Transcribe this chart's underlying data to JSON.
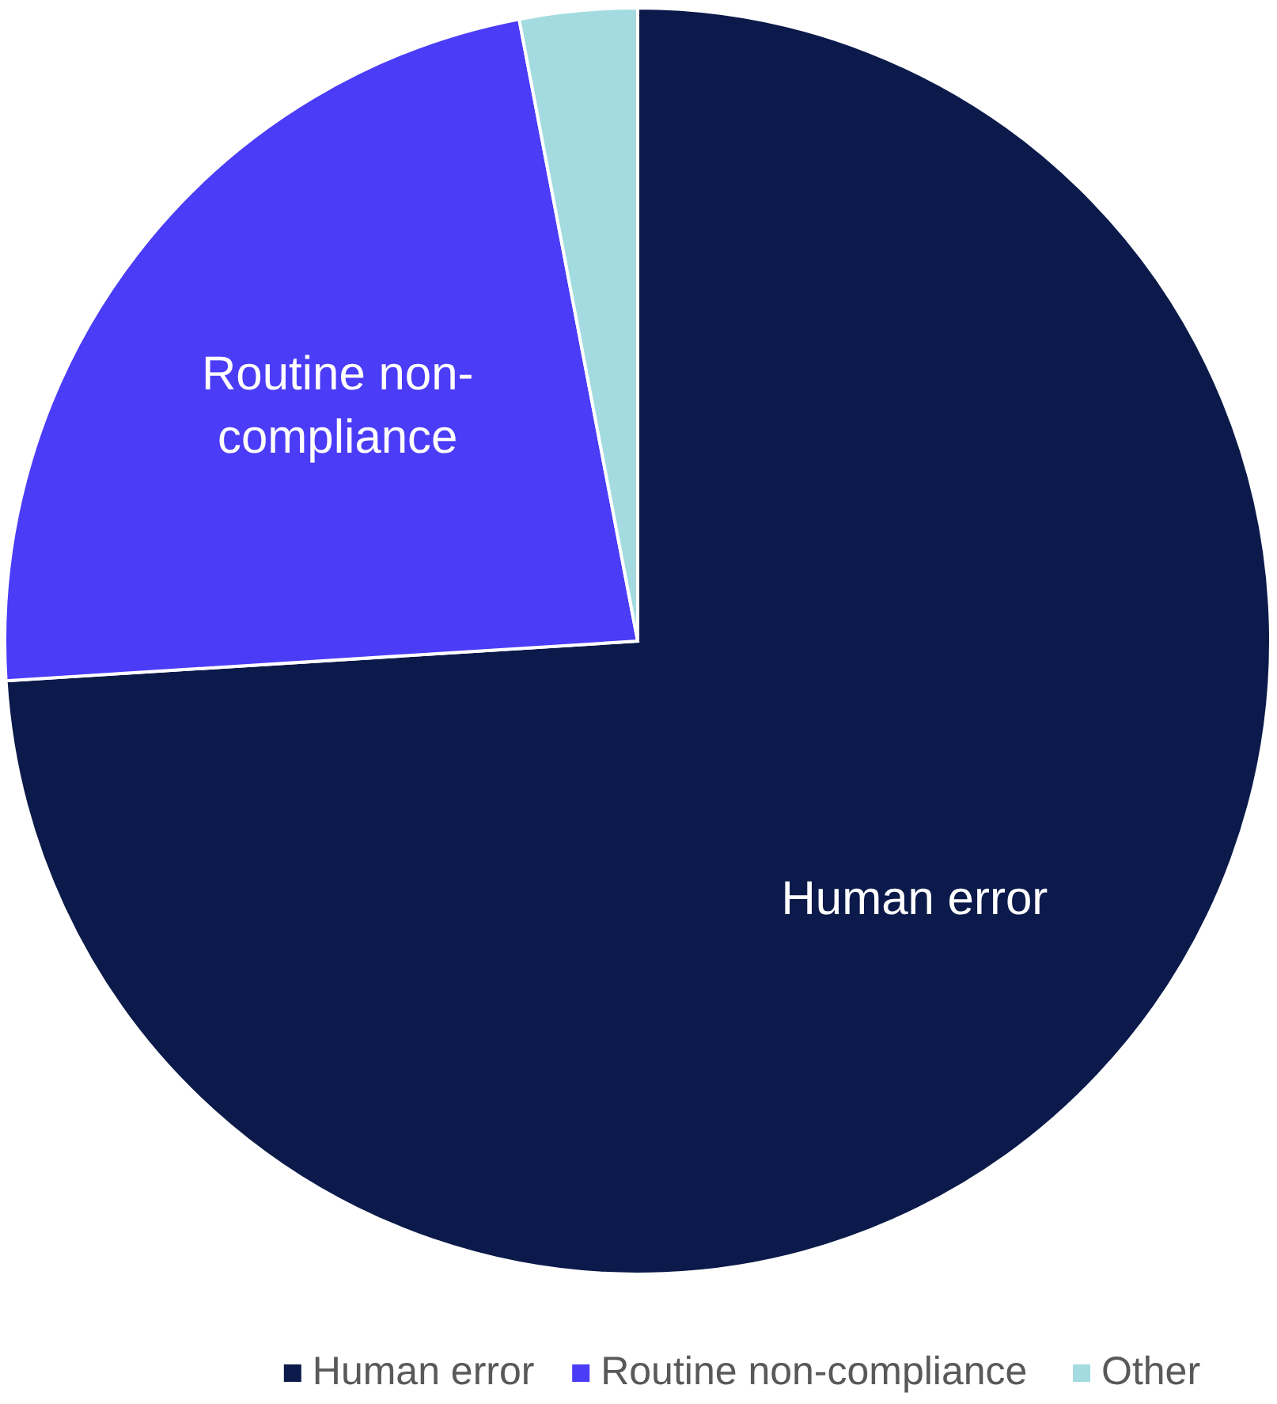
{
  "chart_data": {
    "type": "pie",
    "categories": [
      "Human error",
      "Routine non-compliance",
      "Other"
    ],
    "values": [
      74,
      23,
      3
    ],
    "colors": [
      "#0b1a4a",
      "#4b3cf7",
      "#a3dbe0"
    ],
    "legend": "bottom"
  }
}
